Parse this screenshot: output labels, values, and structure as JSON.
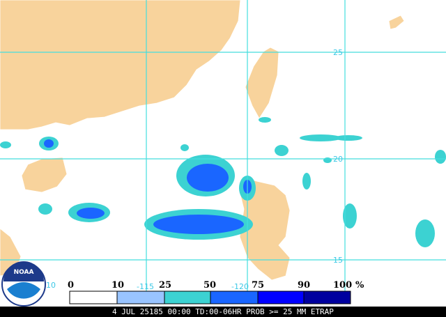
{
  "map": {
    "grid_labels": [
      "25",
      "20",
      "15",
      "-115",
      "-120",
      "10"
    ]
  },
  "logo": "NOAA",
  "legend": {
    "labels": [
      "0",
      "10",
      "25",
      "50",
      "75",
      "90",
      "100"
    ],
    "unit": "%"
  },
  "footer": "4 JUL 25185 00:00 TD:00-06HR PROB >= 25 MM ETRAP"
}
